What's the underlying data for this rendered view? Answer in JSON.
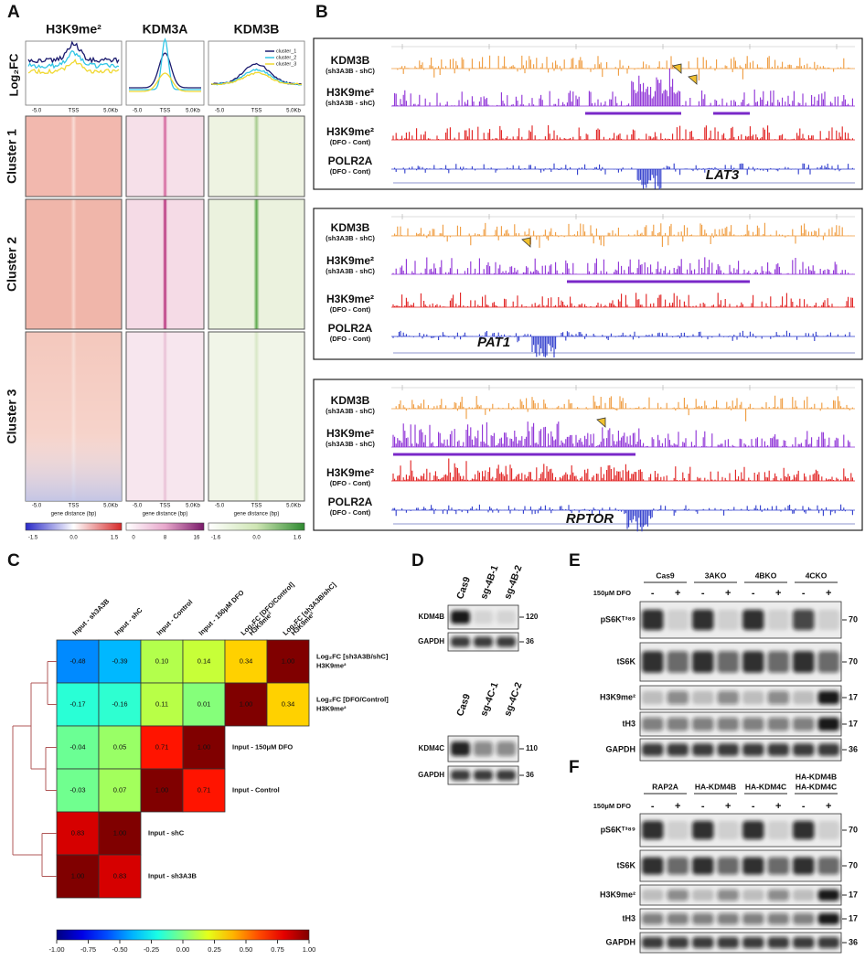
{
  "panel_a": {
    "letter": "A",
    "y_label": "Log₂FC",
    "columns": [
      "H3K9me²",
      "KDM3A",
      "KDM3B"
    ],
    "legend": [
      "cluster_1",
      "cluster_2",
      "cluster_3"
    ],
    "clusters": [
      "Cluster 1",
      "Cluster 2",
      "Cluster 3"
    ],
    "x_ticks": [
      "-5.0",
      "TSS",
      "5.0Kb"
    ],
    "x_label": "gene distance (bp)",
    "colorbar_ticks": [
      [
        "-1.5",
        "0.0",
        "1.5"
      ],
      [
        "0",
        "8",
        "16"
      ],
      [
        "-1.6",
        "0.0",
        "1.6"
      ]
    ]
  },
  "panel_b": {
    "letter": "B",
    "loci": [
      {
        "gene": "LAT3",
        "tracks": [
          {
            "name": "KDM3B",
            "sub": "(sh3A3B - shC)"
          },
          {
            "name": "H3K9me²",
            "sub": "(sh3A3B - shC)"
          },
          {
            "name": "H3K9me²",
            "sub": "(DFO - Cont)"
          },
          {
            "name": "POLR2A",
            "sub": "(DFO - Cont)"
          }
        ]
      },
      {
        "gene": "PAT1",
        "tracks": [
          {
            "name": "KDM3B",
            "sub": "(sh3A3B - shC)"
          },
          {
            "name": "H3K9me²",
            "sub": "(sh3A3B - shC)"
          },
          {
            "name": "H3K9me²",
            "sub": "(DFO - Cont)"
          },
          {
            "name": "POLR2A",
            "sub": "(DFO - Cont)"
          }
        ]
      },
      {
        "gene": "RPTOR",
        "tracks": [
          {
            "name": "KDM3B",
            "sub": "(sh3A3B - shC)"
          },
          {
            "name": "H3K9me²",
            "sub": "(sh3A3B - shC)"
          },
          {
            "name": "H3K9me²",
            "sub": "(DFO - Cont)"
          },
          {
            "name": "POLR2A",
            "sub": "(DFO - Cont)"
          }
        ]
      }
    ]
  },
  "panel_c": {
    "letter": "C",
    "col_labels": [
      [
        "Input - sh3A3B"
      ],
      [
        "Input - shC"
      ],
      [
        "Input - Control"
      ],
      [
        "Input - 150μM DFO"
      ],
      [
        "Log₂FC [DFO/Control]",
        "H3K9me²"
      ],
      [
        "Log₂FC [sh3A3B/shC]",
        "H3K9me²"
      ]
    ],
    "row_labels": [
      [
        "Log₂FC [sh3A3B/shC]",
        "H3K9me²"
      ],
      [
        "Log₂FC [DFO/Control]",
        "H3K9me²"
      ],
      [
        "Input - 150μM DFO"
      ],
      [
        "Input - Control"
      ],
      [
        "Input - shC"
      ],
      [
        "Input - sh3A3B"
      ]
    ],
    "values": [
      [
        -0.48,
        -0.39,
        0.1,
        0.14,
        0.34,
        1.0
      ],
      [
        -0.17,
        -0.16,
        0.11,
        0.01,
        1.0,
        0.34
      ],
      [
        -0.04,
        0.05,
        0.71,
        1.0
      ],
      [
        -0.03,
        0.07,
        1.0,
        0.71
      ],
      [
        0.83,
        1.0
      ],
      [
        1.0,
        0.83
      ]
    ],
    "value_labels": [
      [
        "-0.48",
        "-0.39",
        "0.10",
        "0.14",
        "0.34",
        "1.00"
      ],
      [
        "-0.17",
        "-0.16",
        "0.11",
        "0.01",
        "1.00",
        "0.34"
      ],
      [
        "-0.04",
        "0.05",
        "0.71",
        "1.00"
      ],
      [
        "-0.03",
        "0.07",
        "1.00",
        "0.71"
      ],
      [
        "0.83",
        "1.00"
      ],
      [
        "1.00",
        "0.83"
      ]
    ],
    "colorbar_ticks": [
      {
        "value": -1,
        "label": "-1.00"
      },
      {
        "value": -0.75,
        "label": "-0.75"
      },
      {
        "value": -0.5,
        "label": "-0.50"
      },
      {
        "value": -0.25,
        "label": "-0.25"
      },
      {
        "value": 0,
        "label": "0.00"
      },
      {
        "value": 0.25,
        "label": "0.25"
      },
      {
        "value": 0.5,
        "label": "0.50"
      },
      {
        "value": 0.75,
        "label": "0.75"
      },
      {
        "value": 1,
        "label": "1.00"
      }
    ]
  },
  "panel_d": {
    "letter": "D",
    "blots": [
      {
        "lanes": [
          "Cas9",
          "sg-4B-1",
          "sg-4B-2"
        ],
        "rows": [
          {
            "name": "KDM4B",
            "size": "120"
          },
          {
            "name": "GAPDH",
            "size": "36"
          }
        ]
      },
      {
        "lanes": [
          "Cas9",
          "sg-4C-1",
          "sg-4C-2"
        ],
        "rows": [
          {
            "name": "KDM4C",
            "size": "110"
          },
          {
            "name": "GAPDH",
            "size": "36"
          }
        ]
      }
    ]
  },
  "panel_e": {
    "letter": "E",
    "groups": [
      [
        "Cas9"
      ],
      [
        "3AKO"
      ],
      [
        "4BKO"
      ],
      [
        "4CKO"
      ]
    ],
    "treatment": "150μM DFO",
    "signs": [
      "-",
      "+"
    ],
    "rows": [
      {
        "name": "pS6Kᵀ³⁸⁹",
        "size": "70"
      },
      {
        "name": "tS6K",
        "size": "70"
      },
      {
        "name": "H3K9me²",
        "size": "17"
      },
      {
        "name": "tH3",
        "size": "17"
      },
      {
        "name": "GAPDH",
        "size": "36"
      }
    ]
  },
  "panel_f": {
    "letter": "F",
    "groups": [
      [
        "RAP2A"
      ],
      [
        "HA-KDM4B"
      ],
      [
        "HA-KDM4C"
      ],
      [
        "HA-KDM4B",
        "HA-KDM4C"
      ]
    ],
    "treatment": "150μM DFO",
    "signs": [
      "-",
      "+"
    ],
    "rows": [
      {
        "name": "pS6Kᵀ³⁸⁹",
        "size": "70"
      },
      {
        "name": "tS6K",
        "size": "70"
      },
      {
        "name": "H3K9me²",
        "size": "17"
      },
      {
        "name": "tH3",
        "size": "17"
      },
      {
        "name": "GAPDH",
        "size": "36"
      }
    ]
  }
}
